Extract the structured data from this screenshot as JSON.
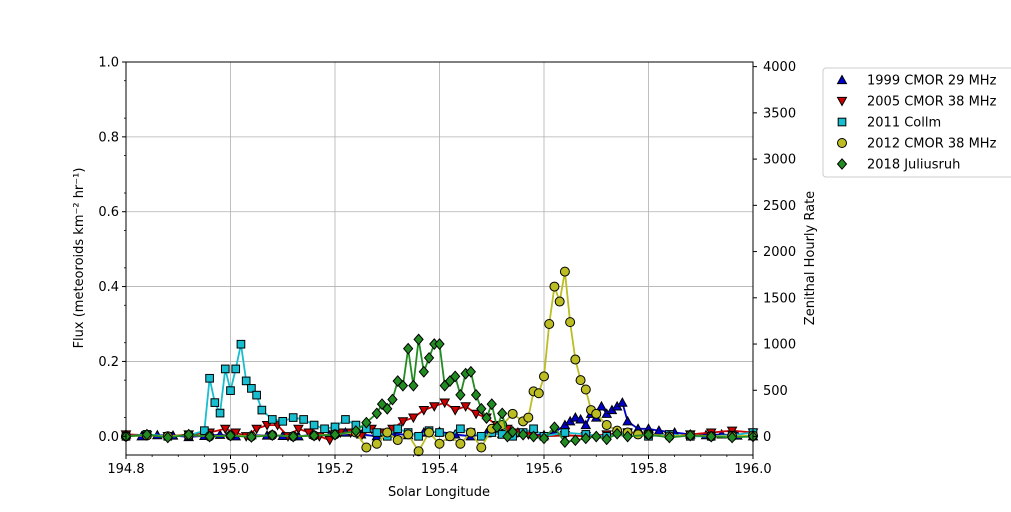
{
  "chart_data": {
    "type": "line",
    "xlabel": "Solar Longitude",
    "ylabel_left": "Flux (meteoroids km⁻² hr⁻¹)",
    "ylabel_right": "Zenithal Hourly Rate",
    "xlim": [
      194.8,
      196.0
    ],
    "ylim_left": [
      -0.05,
      1.0
    ],
    "ylim_right": [
      -200,
      4050
    ],
    "x_ticks": [
      "194.8",
      "195.0",
      "195.2",
      "195.4",
      "195.6",
      "195.8",
      "196.0"
    ],
    "y_ticks_left": [
      "0.0",
      "0.2",
      "0.4",
      "0.6",
      "0.8",
      "1.0"
    ],
    "y_ticks_right": [
      "0",
      "500",
      "1000",
      "1500",
      "2000",
      "2500",
      "3000",
      "3500",
      "4000"
    ],
    "grid": true,
    "legend_position": "outside-top-right",
    "series": [
      {
        "name": "1999 CMOR 29 MHz",
        "axis": "left",
        "marker": "triangle-up",
        "color": "#0000cc",
        "x": [
          194.8,
          194.83,
          194.86,
          194.89,
          194.92,
          194.95,
          194.98,
          195.01,
          195.04,
          195.07,
          195.1,
          195.13,
          195.16,
          195.19,
          195.22,
          195.25,
          195.28,
          195.31,
          195.34,
          195.37,
          195.4,
          195.43,
          195.46,
          195.49,
          195.52,
          195.55,
          195.58,
          195.6,
          195.62,
          195.64,
          195.65,
          195.66,
          195.67,
          195.68,
          195.69,
          195.7,
          195.71,
          195.72,
          195.73,
          195.74,
          195.75,
          195.76,
          195.78,
          195.8,
          195.82,
          195.85,
          195.88,
          195.91,
          195.94,
          195.97,
          196.0
        ],
        "y": [
          0.005,
          0.0,
          0.003,
          0.002,
          -0.002,
          0.001,
          0.004,
          0.0,
          0.003,
          0.002,
          0.001,
          0.0,
          0.004,
          0.003,
          0.01,
          0.005,
          0.0,
          0.008,
          0.003,
          0.01,
          0.012,
          0.005,
          0.0,
          0.008,
          0.006,
          0.01,
          0.005,
          0.003,
          0.01,
          0.03,
          0.04,
          0.05,
          0.045,
          0.03,
          0.06,
          0.05,
          0.08,
          0.06,
          0.07,
          0.08,
          0.09,
          0.04,
          0.02,
          0.02,
          0.015,
          0.01,
          0.005,
          0.003,
          0.005,
          0.002,
          0.0
        ]
      },
      {
        "name": "2005 CMOR 38 MHz",
        "axis": "left",
        "marker": "triangle-down",
        "color": "#cc0000",
        "x": [
          194.8,
          194.84,
          194.88,
          194.92,
          194.96,
          194.99,
          195.01,
          195.03,
          195.05,
          195.07,
          195.09,
          195.11,
          195.13,
          195.15,
          195.17,
          195.19,
          195.21,
          195.23,
          195.25,
          195.27,
          195.29,
          195.31,
          195.33,
          195.35,
          195.37,
          195.39,
          195.41,
          195.43,
          195.45,
          195.47,
          195.49,
          195.51,
          195.53,
          195.55,
          195.57,
          195.6,
          195.64,
          195.68,
          195.72,
          195.76,
          195.8,
          195.84,
          195.88,
          195.92,
          195.96,
          196.0
        ],
        "y": [
          0.005,
          0.003,
          0.0,
          0.005,
          0.01,
          0.02,
          0.01,
          0.0,
          0.02,
          0.03,
          0.03,
          0.0,
          0.02,
          0.01,
          0.0,
          -0.01,
          0.01,
          0.01,
          0.0,
          0.02,
          0.01,
          0.02,
          0.04,
          0.05,
          0.07,
          0.08,
          0.09,
          0.07,
          0.08,
          0.06,
          0.05,
          0.03,
          0.02,
          0.01,
          0.005,
          0.0,
          0.003,
          0.0,
          0.005,
          0.01,
          0.005,
          0.0,
          0.005,
          0.01,
          0.015,
          0.01
        ]
      },
      {
        "name": "2011 Collm",
        "axis": "left",
        "marker": "square",
        "color": "#17becf",
        "x": [
          194.8,
          194.84,
          194.88,
          194.92,
          194.95,
          194.96,
          194.97,
          194.98,
          194.99,
          195.0,
          195.01,
          195.02,
          195.03,
          195.04,
          195.05,
          195.06,
          195.08,
          195.1,
          195.12,
          195.14,
          195.16,
          195.18,
          195.2,
          195.22,
          195.24,
          195.26,
          195.28,
          195.3,
          195.32,
          195.34,
          195.36,
          195.38,
          195.4,
          195.42,
          195.44,
          195.46,
          195.48,
          195.5,
          195.52,
          195.54,
          195.56,
          195.58,
          195.6,
          195.64,
          195.68,
          195.72,
          195.76,
          195.8,
          195.84,
          195.88,
          195.92,
          195.96,
          196.0
        ],
        "y": [
          0.0,
          0.005,
          0.0,
          0.003,
          0.015,
          0.155,
          0.09,
          0.062,
          0.18,
          0.122,
          0.18,
          0.246,
          0.148,
          0.128,
          0.11,
          0.07,
          0.045,
          0.04,
          0.05,
          0.045,
          0.03,
          0.02,
          0.025,
          0.045,
          0.03,
          0.02,
          0.01,
          0.0,
          0.02,
          0.01,
          0.0,
          0.015,
          0.01,
          0.0,
          0.02,
          0.01,
          0.0,
          0.01,
          0.005,
          0.0,
          0.01,
          0.02,
          0.0,
          0.01,
          0.005,
          0.0,
          0.01,
          0.0,
          0.005,
          0.0,
          0.0,
          0.003,
          0.01
        ]
      },
      {
        "name": "2012 CMOR 38 MHz",
        "axis": "left",
        "marker": "circle",
        "color": "#bcbd22",
        "x": [
          194.8,
          194.84,
          194.88,
          194.92,
          194.96,
          195.0,
          195.04,
          195.08,
          195.12,
          195.16,
          195.2,
          195.24,
          195.26,
          195.28,
          195.3,
          195.32,
          195.34,
          195.36,
          195.38,
          195.4,
          195.42,
          195.44,
          195.46,
          195.48,
          195.5,
          195.52,
          195.54,
          195.56,
          195.57,
          195.58,
          195.59,
          195.6,
          195.61,
          195.62,
          195.63,
          195.64,
          195.65,
          195.66,
          195.67,
          195.68,
          195.69,
          195.7,
          195.72,
          195.74,
          195.76,
          195.78,
          195.8,
          195.84,
          195.88,
          195.92,
          195.96,
          196.0
        ],
        "y": [
          0.0,
          0.002,
          0.0,
          0.003,
          0.0,
          0.002,
          0.0,
          0.003,
          0.0,
          0.002,
          0.005,
          0.01,
          -0.03,
          -0.02,
          0.01,
          -0.01,
          0.005,
          -0.04,
          0.01,
          -0.02,
          0.0,
          -0.02,
          0.01,
          -0.03,
          0.02,
          0.03,
          0.06,
          0.04,
          0.05,
          0.12,
          0.115,
          0.16,
          0.3,
          0.4,
          0.36,
          0.44,
          0.305,
          0.205,
          0.15,
          0.125,
          0.07,
          0.06,
          0.03,
          0.015,
          0.01,
          0.005,
          0.005,
          0.0,
          0.003,
          0.0,
          0.0,
          0.002
        ]
      },
      {
        "name": "2018 Juliusruh",
        "axis": "right",
        "marker": "diamond",
        "color": "#228b22",
        "x": [
          194.8,
          194.84,
          194.88,
          194.92,
          194.96,
          195.0,
          195.04,
          195.08,
          195.12,
          195.16,
          195.2,
          195.24,
          195.26,
          195.28,
          195.29,
          195.3,
          195.31,
          195.32,
          195.33,
          195.34,
          195.35,
          195.36,
          195.37,
          195.38,
          195.39,
          195.4,
          195.41,
          195.42,
          195.43,
          195.44,
          195.45,
          195.46,
          195.47,
          195.48,
          195.49,
          195.5,
          195.51,
          195.52,
          195.53,
          195.54,
          195.56,
          195.58,
          195.6,
          195.62,
          195.64,
          195.66,
          195.68,
          195.7,
          195.72,
          195.74,
          195.76,
          195.8,
          195.84,
          195.88,
          195.92,
          195.96,
          196.0
        ],
        "y": [
          0,
          20,
          -10,
          20,
          0,
          10,
          -5,
          15,
          0,
          10,
          20,
          60,
          150,
          250,
          350,
          300,
          400,
          600,
          550,
          950,
          550,
          1050,
          700,
          850,
          1000,
          1000,
          550,
          600,
          650,
          450,
          680,
          700,
          450,
          300,
          200,
          350,
          100,
          250,
          0,
          50,
          20,
          0,
          -20,
          100,
          -60,
          -40,
          -20,
          0,
          -30,
          30,
          0,
          20,
          -10,
          10,
          0,
          -10,
          0
        ]
      }
    ]
  }
}
